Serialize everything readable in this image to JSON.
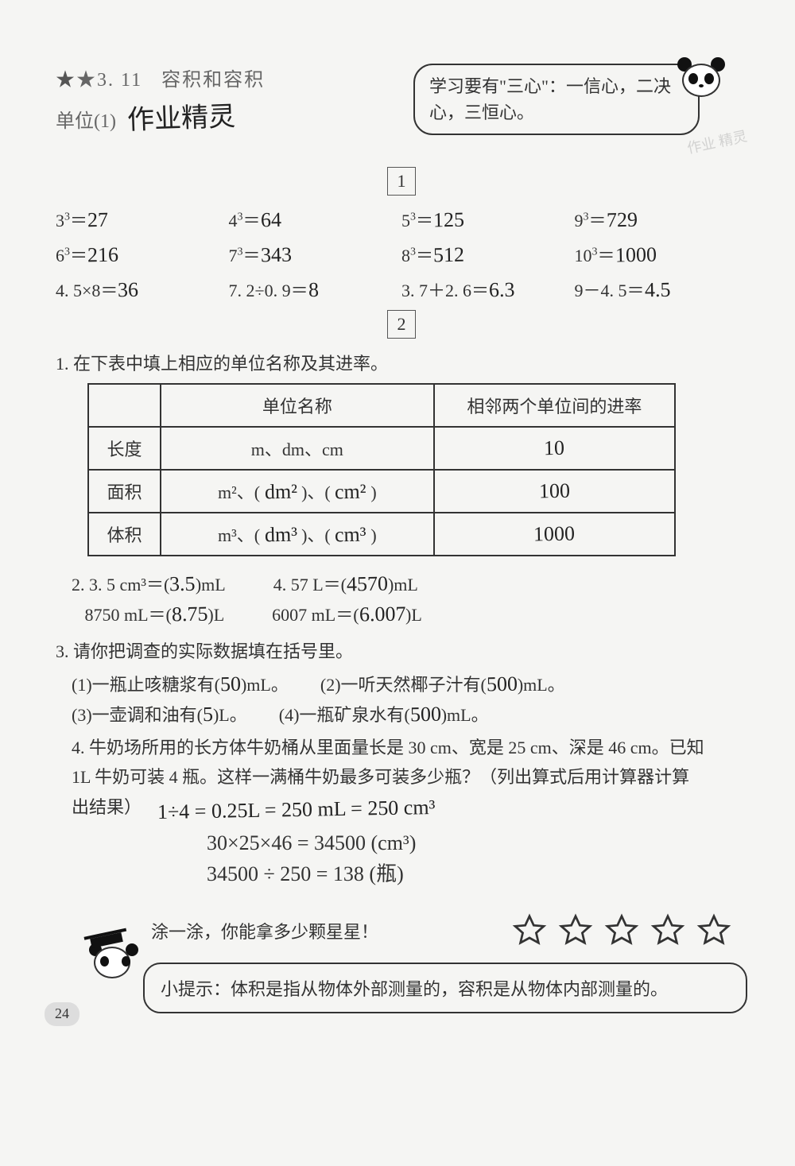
{
  "header": {
    "section_number": "★3. 11",
    "section_title_cn": "容积和容积",
    "unit_label": "单位(1)",
    "handwritten_title": "作业精灵",
    "callout_text": "学习要有\"三心\"：一信心，二决心，三恒心。"
  },
  "watermark": "作业\n精灵",
  "section1": {
    "box_label": "1",
    "rows": [
      [
        {
          "expr": "3³＝",
          "ans": "27"
        },
        {
          "expr": "4³＝",
          "ans": "64"
        },
        {
          "expr": "5³＝",
          "ans": "125"
        },
        {
          "expr": "9³＝",
          "ans": "729"
        }
      ],
      [
        {
          "expr": "6³＝",
          "ans": "216"
        },
        {
          "expr": "7³＝",
          "ans": "343"
        },
        {
          "expr": "8³＝",
          "ans": "512"
        },
        {
          "expr": "10³＝",
          "ans": "1000"
        }
      ],
      [
        {
          "expr": "4. 5×8＝",
          "ans": "36"
        },
        {
          "expr": "7. 2÷0. 9＝",
          "ans": "8"
        },
        {
          "expr": "3. 7＋2. 6＝",
          "ans": "6.3"
        },
        {
          "expr": "9－4. 5＝",
          "ans": "4.5"
        }
      ]
    ]
  },
  "section2": {
    "box_label": "2",
    "q1": {
      "prompt": "1. 在下表中填上相应的单位名称及其进率。",
      "header_name": "单位名称",
      "header_rate": "相邻两个单位间的进率",
      "rows": [
        {
          "label": "长度",
          "name_print": "m、dm、cm",
          "name_hand_a": "",
          "name_hand_b": "",
          "rate": "10"
        },
        {
          "label": "面积",
          "name_print_prefix": "m²、(",
          "name_hand_a": "dm²",
          "mid": ")、(",
          "name_hand_b": "cm²",
          "suffix": ")",
          "rate": "100"
        },
        {
          "label": "体积",
          "name_print_prefix": "m³、(",
          "name_hand_a": "dm³",
          "mid": ")、(",
          "name_hand_b": "cm³",
          "suffix": ")",
          "rate": "1000"
        }
      ]
    },
    "q2": {
      "prompt_num": "2.",
      "items": [
        {
          "left_pre": "3. 5 cm³＝(",
          "left_ans": "3.5",
          "left_post": ")mL",
          "right_pre": "4. 57 L＝(",
          "right_ans": "4570",
          "right_post": ")mL"
        },
        {
          "left_pre": "8750 mL＝(",
          "left_ans": "8.75",
          "left_post": ")L",
          "right_pre": "6007 mL＝(",
          "right_ans": "6.007",
          "right_post": ")L"
        }
      ]
    },
    "q3": {
      "prompt": "3. 请你把调查的实际数据填在括号里。",
      "items": [
        {
          "l_pre": "(1)一瓶止咳糖浆有(",
          "l_ans": "50",
          "l_post": ")mL。",
          "r_pre": "(2)一听天然椰子汁有(",
          "r_ans": "500",
          "r_post": ")mL。"
        },
        {
          "l_pre": "(3)一壶调和油有(",
          "l_ans": "5",
          "l_post": ")L。",
          "r_pre": "(4)一瓶矿泉水有(",
          "r_ans": "500",
          "r_post": ")mL。"
        }
      ]
    },
    "q4": {
      "prompt_line1": "4. 牛奶场所用的长方体牛奶桶从里面量长是 30 cm、宽是 25 cm、深是 46 cm。已知",
      "prompt_line2": "1L 牛奶可装 4 瓶。这样一满桶牛奶最多可装多少瓶？（列出算式后用计算器计算",
      "prompt_line3": "出结果）",
      "work_lines": [
        "1÷4 = 0.25L = 250 mL = 250 cm³",
        "30×25×46 = 34500 (cm³)",
        "34500 ÷ 250 = 138 (瓶)"
      ]
    }
  },
  "stars": {
    "label": "涂一涂，你能拿多少颗星星！",
    "count": 5,
    "star_stroke": "#333"
  },
  "tip": {
    "text": "小提示：体积是指从物体外部测量的，容积是从物体内部测量的。"
  },
  "page_number": "24",
  "colors": {
    "text": "#333333",
    "hand": "#222222",
    "border": "#333333",
    "bg": "#f5f5f3"
  }
}
